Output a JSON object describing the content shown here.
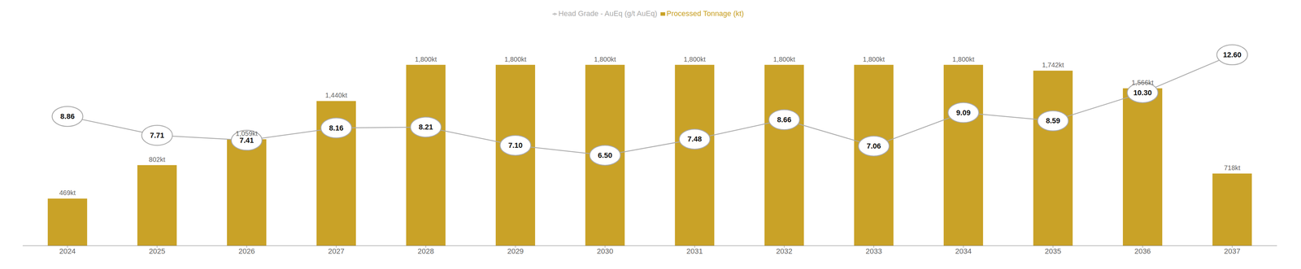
{
  "chart_data": {
    "type": "bar",
    "categories": [
      "2024",
      "2025",
      "2026",
      "2027",
      "2028",
      "2029",
      "2030",
      "2031",
      "2032",
      "2033",
      "2034",
      "2035",
      "2036",
      "2037"
    ],
    "series": [
      {
        "name": "Processed Tonnage (kt)",
        "type": "bar",
        "color": "#C9A227",
        "values": [
          469,
          802,
          1059,
          1440,
          1800,
          1800,
          1800,
          1800,
          1800,
          1800,
          1800,
          1742,
          1566,
          718
        ],
        "value_labels": [
          "469kt",
          "802kt",
          "1,059kt",
          "1,440kt",
          "1,800kt",
          "1,800kt",
          "1,800kt",
          "1,800kt",
          "1,800kt",
          "1,800kt",
          "1,800kt",
          "1,742kt",
          "1,566kt",
          "718kt"
        ]
      },
      {
        "name": "Head Grade - AuEq (g/t AuEq)",
        "type": "line",
        "axis": "y2",
        "color": "#AAAAAA",
        "marker": "circle",
        "values": [
          8.86,
          7.71,
          7.41,
          8.16,
          8.21,
          7.1,
          6.5,
          7.48,
          8.66,
          7.06,
          9.09,
          8.59,
          10.3,
          12.6
        ],
        "value_labels": [
          "8.86",
          "7.71",
          "7.41",
          "8.16",
          "8.21",
          "7.10",
          "6.50",
          "7.48",
          "8.66",
          "7.06",
          "9.09",
          "8.59",
          "10.30",
          "12.60"
        ]
      }
    ],
    "ylim": [
      0,
      2200
    ],
    "y2lim": [
      1.0091519219036,
      14.43197071385
    ],
    "tick_labels": "x",
    "data_labels": true,
    "legend": "top",
    "grid": false
  }
}
